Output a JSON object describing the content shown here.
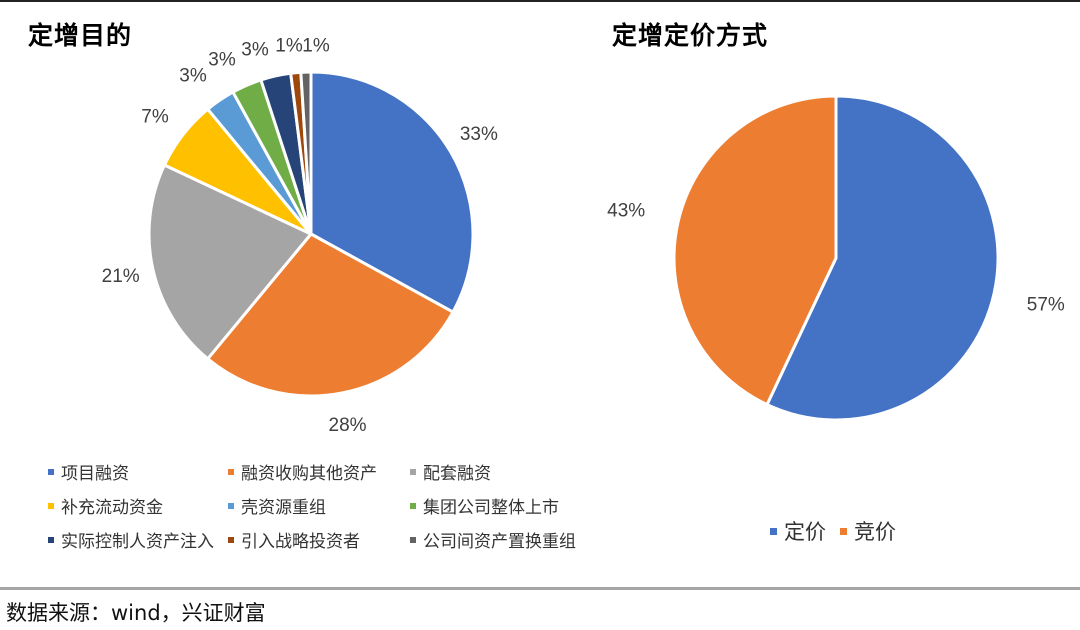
{
  "source": "数据来源：wind，兴证财富",
  "chart_data": [
    {
      "type": "pie",
      "title": "定增目的",
      "categories": [
        "项目融资",
        "融资收购其他资产",
        "配套融资",
        "补充流动资金",
        "壳资源重组",
        "集团公司整体上市",
        "实际控制人资产注入",
        "引入战略投资者",
        "公司间资产置换重组"
      ],
      "values": [
        33,
        28,
        21,
        7,
        3,
        3,
        3,
        1,
        1
      ],
      "labels": [
        "33%",
        "28%",
        "21%",
        "7%",
        "3%",
        "3%",
        "3%",
        "1%",
        "1%"
      ],
      "colors": [
        "#4472C4",
        "#ED7D31",
        "#A5A5A5",
        "#FFC000",
        "#5B9BD5",
        "#70AD47",
        "#264478",
        "#9E480E",
        "#636363"
      ],
      "legend_position": "bottom"
    },
    {
      "type": "pie",
      "title": "定增定价方式",
      "categories": [
        "定价",
        "竞价"
      ],
      "values": [
        57,
        43
      ],
      "labels": [
        "57%",
        "43%"
      ],
      "colors": [
        "#4472C4",
        "#ED7D31"
      ],
      "legend_position": "bottom"
    }
  ]
}
